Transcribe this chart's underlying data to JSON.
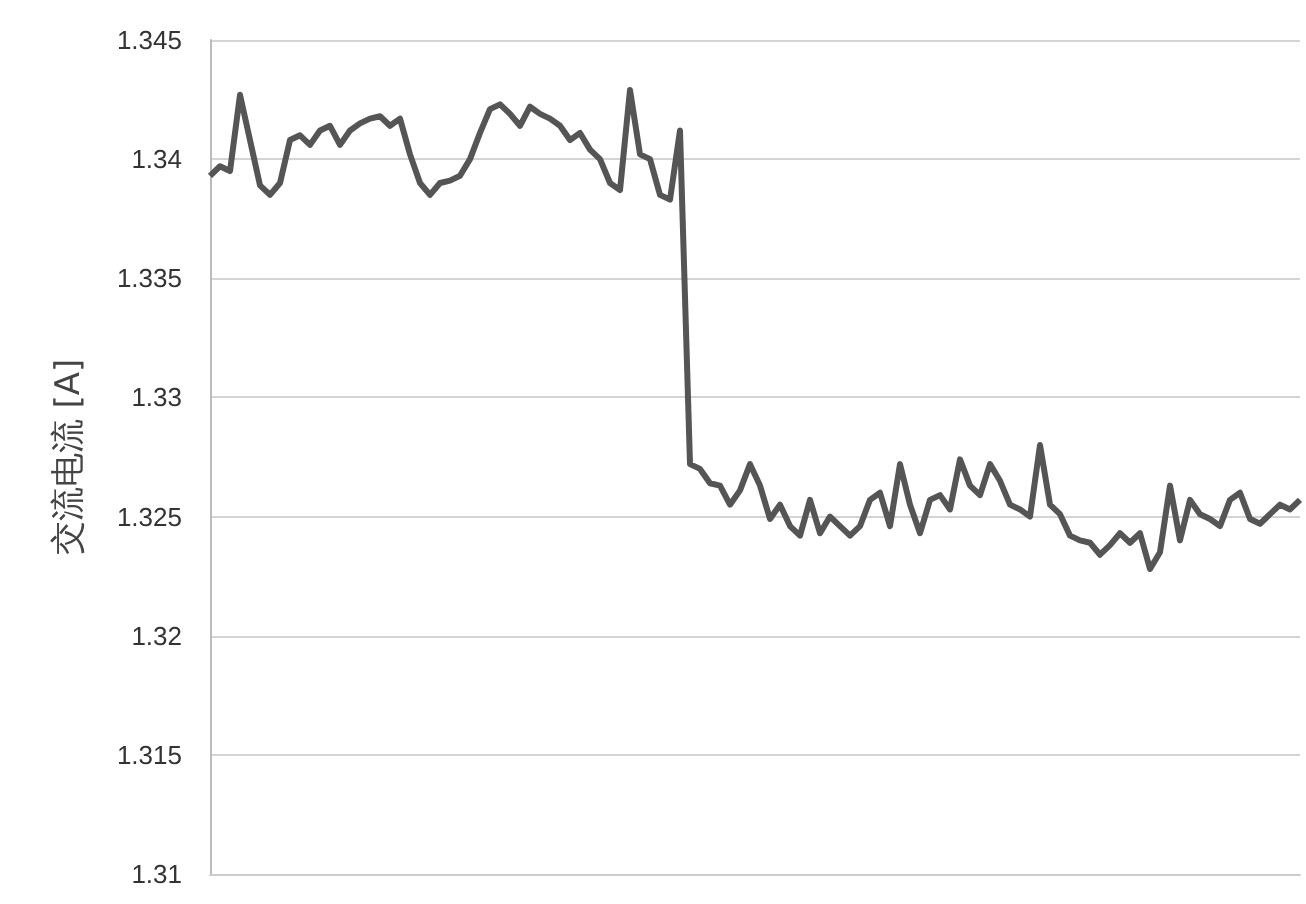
{
  "chart_data": {
    "type": "line",
    "ylabel": "交流电流 [A]",
    "categories": [
      null,
      null,
      null,
      null,
      null,
      null,
      null,
      null,
      null,
      null,
      null,
      null,
      null,
      null,
      null,
      null,
      null,
      null,
      null,
      null,
      null,
      null,
      null,
      null,
      null,
      null,
      null,
      null,
      null,
      null,
      null,
      null,
      null,
      null,
      null,
      null,
      null,
      null,
      null,
      null,
      null,
      null,
      null,
      null,
      null,
      null,
      null,
      null,
      null,
      null,
      null,
      null,
      null,
      null,
      null,
      null,
      null,
      null,
      null,
      null,
      null,
      null,
      null,
      null,
      null,
      null,
      null,
      null,
      null,
      null,
      null,
      null,
      null,
      null,
      null,
      null,
      null,
      null,
      null,
      null,
      null,
      null,
      null,
      null,
      null,
      null,
      null,
      null,
      null,
      null,
      null,
      null,
      null,
      null,
      null,
      null,
      null,
      null,
      null,
      null,
      null,
      null,
      null,
      null,
      null,
      null,
      null,
      null,
      null,
      null
    ],
    "series": [
      {
        "color": "#555555",
        "values": [
          1.3393,
          1.3397,
          1.3395,
          1.3427,
          1.3408,
          1.3389,
          1.3385,
          1.339,
          1.3408,
          1.341,
          1.3406,
          1.3412,
          1.3414,
          1.3406,
          1.3412,
          1.3415,
          1.3417,
          1.3418,
          1.3414,
          1.3417,
          1.3402,
          1.339,
          1.3385,
          1.339,
          1.3391,
          1.3393,
          1.34,
          1.3411,
          1.3421,
          1.3423,
          1.3419,
          1.3414,
          1.3422,
          1.3419,
          1.3417,
          1.3414,
          1.3408,
          1.3411,
          1.3404,
          1.34,
          1.339,
          1.3387,
          1.3429,
          1.3402,
          1.34,
          1.3385,
          1.3383,
          1.3412,
          1.3272,
          1.327,
          1.3264,
          1.3263,
          1.3255,
          1.3261,
          1.3272,
          1.3263,
          1.3249,
          1.3255,
          1.3246,
          1.3242,
          1.3257,
          1.3243,
          1.325,
          1.3246,
          1.3242,
          1.3246,
          1.3257,
          1.326,
          1.3246,
          1.3272,
          1.3255,
          1.3243,
          1.3257,
          1.3259,
          1.3253,
          1.3274,
          1.3263,
          1.3259,
          1.3272,
          1.3265,
          1.3255,
          1.3253,
          1.325,
          1.328,
          1.3255,
          1.3251,
          1.3242,
          1.324,
          1.3239,
          1.3234,
          1.3238,
          1.3243,
          1.3239,
          1.3243,
          1.3228,
          1.3235,
          1.3263,
          1.324,
          1.3257,
          1.3251,
          1.3249,
          1.3246,
          1.3257,
          1.326,
          1.3249,
          1.3247,
          1.3251,
          1.3255,
          1.3253,
          1.3257
        ]
      }
    ],
    "ylim": [
      1.31,
      1.345
    ],
    "yticks": [
      1.31,
      1.315,
      1.32,
      1.325,
      1.33,
      1.335,
      1.34,
      1.345
    ],
    "grid": "y",
    "tick_labels": "y",
    "line_style": "solid"
  }
}
